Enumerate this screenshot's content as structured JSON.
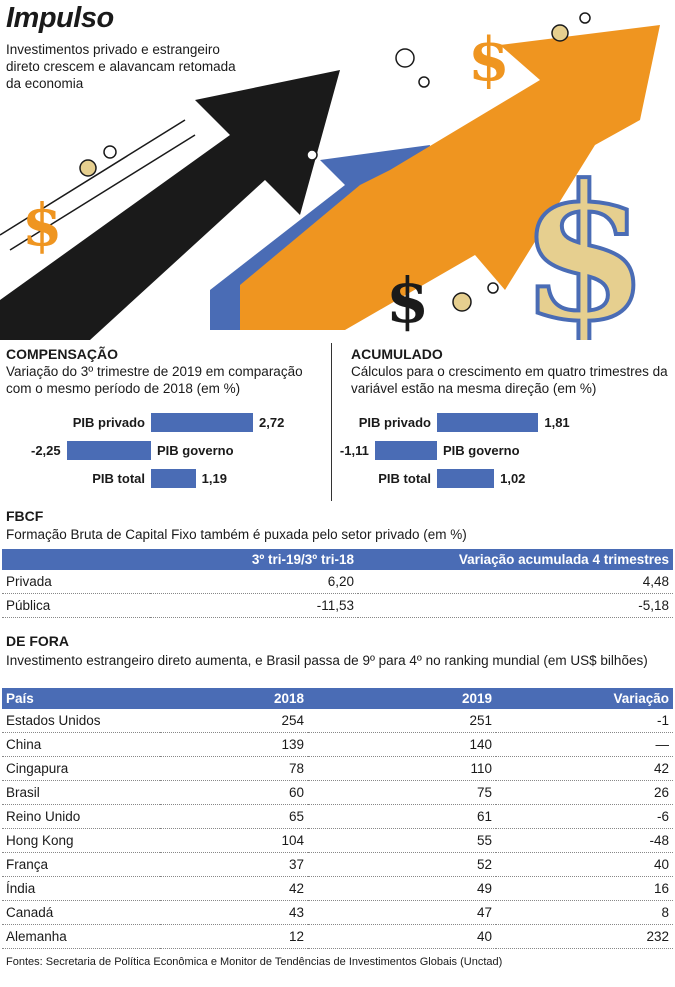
{
  "header": {
    "title": "Impulso",
    "subtitle": "Investimentos privado e estrangeiro direto crescem e alavancam retomada da economia"
  },
  "colors": {
    "blue": "#4a6cb5",
    "orange": "#ef9520",
    "black": "#1a1a1a",
    "gold": "#e6cf8f"
  },
  "chart_data": [
    {
      "type": "bar",
      "title": "COMPENSAÇÃO",
      "subtitle": "Variação do 3º trimestre de 2019 em comparação com o mesmo período de 2018 (em %)",
      "categories": [
        "PIB privado",
        "PIB governo",
        "PIB total"
      ],
      "values": [
        2.72,
        -2.25,
        1.19
      ],
      "value_labels": [
        "2,72",
        "-2,25",
        "1,19"
      ]
    },
    {
      "type": "bar",
      "title": "ACUMULADO",
      "subtitle": "Cálculos para o crescimento em quatro trimestres da variável estão na mesma direção (em %)",
      "categories": [
        "PIB privado",
        "PIB governo",
        "PIB total"
      ],
      "values": [
        1.81,
        -1.11,
        1.02
      ],
      "value_labels": [
        "1,81",
        "-1,11",
        "1,02"
      ]
    },
    {
      "type": "table",
      "title": "FBCF",
      "subtitle": "Formação Bruta de Capital Fixo também é puxada pelo setor privado (em %)",
      "columns": [
        "",
        "3º tri-19/3º tri-18",
        "Variação acumulada 4 trimestres"
      ],
      "rows": [
        [
          "Privada",
          "6,20",
          "4,48"
        ],
        [
          "Pública",
          "-11,53",
          "-5,18"
        ]
      ]
    },
    {
      "type": "table",
      "title": "DE FORA",
      "subtitle": "Investimento estrangeiro direto aumenta, e Brasil passa de 9º para 4º no ranking mundial (em US$ bilhões)",
      "columns": [
        "País",
        "2018",
        "2019",
        "Variação"
      ],
      "rows": [
        [
          "Estados Unidos",
          "254",
          "251",
          "-1"
        ],
        [
          "China",
          "139",
          "140",
          "—"
        ],
        [
          "Cingapura",
          "78",
          "110",
          "42"
        ],
        [
          "Brasil",
          "60",
          "75",
          "26"
        ],
        [
          "Reino Unido",
          "65",
          "61",
          "-6"
        ],
        [
          "Hong Kong",
          "104",
          "55",
          "-48"
        ],
        [
          "França",
          "37",
          "52",
          "40"
        ],
        [
          "Índia",
          "42",
          "49",
          "16"
        ],
        [
          "Canadá",
          "43",
          "47",
          "8"
        ],
        [
          "Alemanha",
          "12",
          "40",
          "232"
        ]
      ]
    }
  ],
  "sources": "Fontes: Secretaria de Política Econômica e Monitor de Tendências de Investimentos Globais (Unctad)"
}
